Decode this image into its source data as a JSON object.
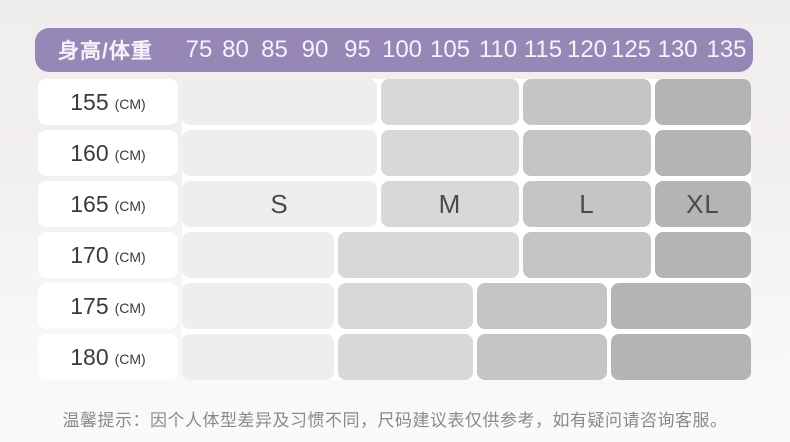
{
  "header": {
    "corner_label": "身高/体重",
    "bar_color": "#9787b6",
    "text_color": "#f6f2fb"
  },
  "size_colors": {
    "S": "#efeded",
    "M": "#d9d8d8",
    "L": "#c6c5c5",
    "XL": "#b5b3b3"
  },
  "chart_data": {
    "type": "table",
    "title": "身高/体重",
    "x_label": "体重",
    "y_label": "身高",
    "x_categories": [
      "75",
      "80",
      "85",
      "90",
      "95",
      "100",
      "105",
      "110",
      "115",
      "120",
      "125",
      "130",
      "135"
    ],
    "y_categories": [
      "155",
      "160",
      "165",
      "170",
      "175",
      "180"
    ],
    "y_unit": "(CM)",
    "legend": [
      "S",
      "M",
      "L",
      "XL"
    ],
    "rows": [
      {
        "height": "155",
        "unit": "(CM)",
        "blocks": [
          {
            "size": "S",
            "label": "",
            "from": "75",
            "to": "95"
          },
          {
            "size": "M",
            "label": "",
            "from": "100",
            "to": "110"
          },
          {
            "size": "L",
            "label": "",
            "from": "115",
            "to": "125"
          },
          {
            "size": "XL",
            "label": "",
            "from": "130",
            "to": "135"
          }
        ]
      },
      {
        "height": "160",
        "unit": "(CM)",
        "blocks": [
          {
            "size": "S",
            "label": "",
            "from": "75",
            "to": "95"
          },
          {
            "size": "M",
            "label": "",
            "from": "100",
            "to": "110"
          },
          {
            "size": "L",
            "label": "",
            "from": "115",
            "to": "125"
          },
          {
            "size": "XL",
            "label": "",
            "from": "130",
            "to": "135"
          }
        ]
      },
      {
        "height": "165",
        "unit": "(CM)",
        "blocks": [
          {
            "size": "S",
            "label": "S",
            "from": "75",
            "to": "95"
          },
          {
            "size": "M",
            "label": "M",
            "from": "100",
            "to": "110"
          },
          {
            "size": "L",
            "label": "L",
            "from": "115",
            "to": "125"
          },
          {
            "size": "XL",
            "label": "XL",
            "from": "130",
            "to": "135"
          }
        ]
      },
      {
        "height": "170",
        "unit": "(CM)",
        "blocks": [
          {
            "size": "S",
            "label": "",
            "from": "75",
            "to": "90"
          },
          {
            "size": "M",
            "label": "",
            "from": "95",
            "to": "110"
          },
          {
            "size": "L",
            "label": "",
            "from": "115",
            "to": "125"
          },
          {
            "size": "XL",
            "label": "",
            "from": "130",
            "to": "135"
          }
        ]
      },
      {
        "height": "175",
        "unit": "(CM)",
        "blocks": [
          {
            "size": "S",
            "label": "",
            "from": "75",
            "to": "90"
          },
          {
            "size": "M",
            "label": "",
            "from": "95",
            "to": "105"
          },
          {
            "size": "L",
            "label": "",
            "from": "110",
            "to": "120"
          },
          {
            "size": "XL",
            "label": "",
            "from": "125",
            "to": "135"
          }
        ]
      },
      {
        "height": "180",
        "unit": "(CM)",
        "blocks": [
          {
            "size": "S",
            "label": "",
            "from": "75",
            "to": "90"
          },
          {
            "size": "M",
            "label": "",
            "from": "95",
            "to": "105"
          },
          {
            "size": "L",
            "label": "",
            "from": "110",
            "to": "120"
          },
          {
            "size": "XL",
            "label": "",
            "from": "125",
            "to": "135"
          }
        ]
      }
    ]
  },
  "footer": {
    "note": "温馨提示：因个人体型差异及习惯不同，尺码建议表仅供参考，如有疑问请咨询客服。"
  }
}
